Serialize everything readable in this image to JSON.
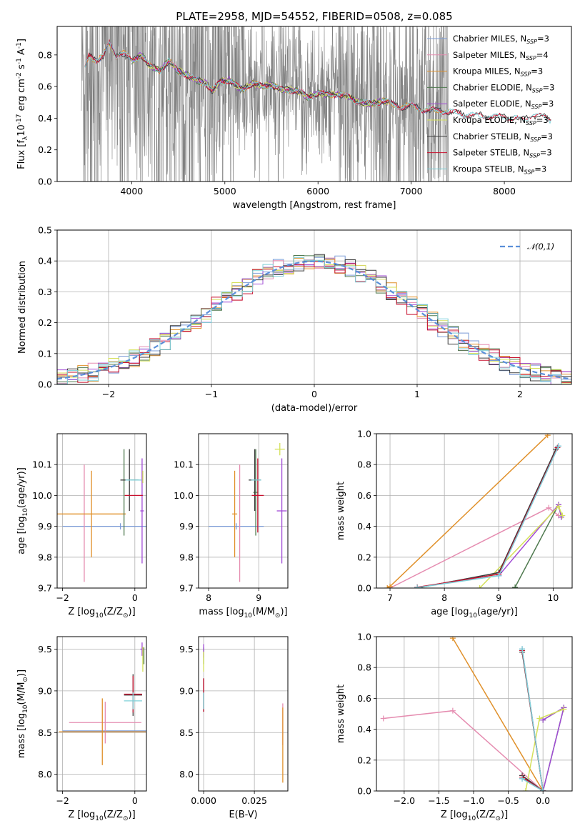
{
  "title": "PLATE=2958, MJD=54552, FIBERID=0508, z=0.085",
  "colors": {
    "Chabrier MILES": "#7b9bd6",
    "Salpeter MILES": "#e58cb0",
    "Kroupa MILES": "#e0902a",
    "Chabrier ELODIE": "#4f7a4f",
    "Salpeter ELODIE": "#a14bd6",
    "Kroupa ELODIE": "#d4e05a",
    "Chabrier STELIB": "#3c3c3c",
    "Salpeter STELIB": "#c8102e",
    "Kroupa STELIB": "#7fd0d8",
    "data": "#808080",
    "gaussian": "#5b8fd9"
  },
  "chart_data": [
    {
      "id": "spectrum",
      "type": "line",
      "xlabel": "wavelength [Angstrom, rest frame]",
      "ylabel": "Flux [f$_\\lambda$10$^{-17}$ erg cm$^{-2}$ s$^{-1}$ A$^{-1}$]",
      "xlim": [
        3200,
        8720
      ],
      "ylim": [
        0,
        0.98
      ],
      "xticks": [
        4000,
        5000,
        6000,
        7000,
        8000
      ],
      "yticks": [
        0.0,
        0.2,
        0.4,
        0.6,
        0.8
      ],
      "grid": false,
      "legend_position": "top-right",
      "data_range": [
        3460,
        7400
      ],
      "model_curve": [
        [
          3460,
          0.64
        ],
        [
          3540,
          0.79
        ],
        [
          3620,
          0.77
        ],
        [
          3700,
          0.8
        ],
        [
          3760,
          0.87
        ],
        [
          3830,
          0.79
        ],
        [
          3880,
          0.82
        ],
        [
          3940,
          0.8
        ],
        [
          4000,
          0.76
        ],
        [
          4100,
          0.8
        ],
        [
          4200,
          0.73
        ],
        [
          4300,
          0.7
        ],
        [
          4400,
          0.76
        ],
        [
          4500,
          0.7
        ],
        [
          4600,
          0.67
        ],
        [
          4700,
          0.64
        ],
        [
          4800,
          0.62
        ],
        [
          4861,
          0.57
        ],
        [
          4950,
          0.63
        ],
        [
          5050,
          0.64
        ],
        [
          5175,
          0.58
        ],
        [
          5300,
          0.62
        ],
        [
          5400,
          0.6
        ],
        [
          5500,
          0.61
        ],
        [
          5600,
          0.58
        ],
        [
          5700,
          0.58
        ],
        [
          5800,
          0.57
        ],
        [
          5893,
          0.53
        ],
        [
          6000,
          0.56
        ],
        [
          6100,
          0.55
        ],
        [
          6200,
          0.55
        ],
        [
          6300,
          0.54
        ],
        [
          6400,
          0.51
        ],
        [
          6563,
          0.49
        ],
        [
          6700,
          0.51
        ],
        [
          6800,
          0.49
        ],
        [
          6900,
          0.47
        ],
        [
          7000,
          0.48
        ],
        [
          7100,
          0.46
        ],
        [
          7200,
          0.45
        ],
        [
          7300,
          0.45
        ],
        [
          7400,
          0.44
        ],
        [
          7500,
          0.43
        ],
        [
          7600,
          0.42
        ],
        [
          7700,
          0.42
        ],
        [
          7800,
          0.41
        ],
        [
          7900,
          0.41
        ],
        [
          8000,
          0.41
        ],
        [
          8100,
          0.4
        ],
        [
          8200,
          0.39
        ],
        [
          8300,
          0.42
        ],
        [
          8400,
          0.41
        ],
        [
          8500,
          0.39
        ]
      ],
      "legend": [
        {
          "label": "Chabrier MILES, N",
          "sub": "SSP",
          "eq": "=3"
        },
        {
          "label": "Salpeter MILES, N",
          "sub": "SSP",
          "eq": "=4"
        },
        {
          "label": "Kroupa MILES, N",
          "sub": "SSP",
          "eq": "=3"
        },
        {
          "label": "Chabrier ELODIE, N",
          "sub": "SSP",
          "eq": "=3"
        },
        {
          "label": "Salpeter ELODIE, N",
          "sub": "SSP",
          "eq": "=3"
        },
        {
          "label": "Kroupa ELODIE, N",
          "sub": "SSP",
          "eq": "=3"
        },
        {
          "label": "Chabrier STELIB, N",
          "sub": "SSP",
          "eq": "=3"
        },
        {
          "label": "Salpeter STELIB, N",
          "sub": "SSP",
          "eq": "=3"
        },
        {
          "label": "Kroupa STELIB, N",
          "sub": "SSP",
          "eq": "=3"
        }
      ]
    },
    {
      "id": "residuals",
      "type": "line",
      "xlabel": "(data-model)/error",
      "ylabel": "Normed distribution",
      "xlim": [
        -2.5,
        2.5
      ],
      "ylim": [
        0,
        0.5
      ],
      "xticks": [
        -2,
        -1,
        0,
        1,
        2
      ],
      "yticks": [
        0.0,
        0.1,
        0.2,
        0.3,
        0.4,
        0.5
      ],
      "grid": true,
      "legend_label": "$\\mathcal{N}(0,1)$",
      "legend_position": "top-right",
      "bin_width": 0.1
    },
    {
      "id": "age_vs_Z",
      "type": "scatter",
      "xlabel": "Z [log$_{10}$($Z/Z_\\odot$)]",
      "ylabel": "age  [log$_{10}$($age/yr$)]",
      "xlim": [
        -2.15,
        0.32
      ],
      "ylim": [
        9.7,
        10.2
      ],
      "xticks": [
        -2,
        0
      ],
      "yticks": [
        9.7,
        9.8,
        9.9,
        10.0,
        10.1
      ],
      "grid": true,
      "points": [
        {
          "m": "Chabrier MILES",
          "x": -0.4,
          "xe": 1.6,
          "y": 9.9,
          "ye": 0.01
        },
        {
          "m": "Salpeter MILES",
          "x": -1.4,
          "xe": 0.0,
          "y": 9.91,
          "ye": 0.19
        },
        {
          "m": "Kroupa MILES",
          "x": -1.2,
          "xe": 0.95,
          "y": 9.94,
          "ye": 0.14
        },
        {
          "m": "Chabrier ELODIE",
          "x": -0.3,
          "xe": 0.0,
          "y": 10.01,
          "ye": 0.14
        },
        {
          "m": "Salpeter ELODIE",
          "x": 0.2,
          "xe": 0.05,
          "y": 9.95,
          "ye": 0.17
        },
        {
          "m": "Kroupa ELODIE",
          "x": 0.22,
          "xe": 0.0,
          "y": 10.06,
          "ye": 0.02
        },
        {
          "m": "Chabrier STELIB",
          "x": -0.15,
          "xe": 0.25,
          "y": 10.05,
          "ye": 0.1
        },
        {
          "m": "Salpeter STELIB",
          "x": -0.03,
          "xe": 0.25,
          "y": 10.0,
          "ye": 0.0
        },
        {
          "m": "Kroupa STELIB",
          "x": -0.04,
          "xe": 0.22,
          "y": 10.05,
          "ye": 0.0
        }
      ]
    },
    {
      "id": "age_vs_mass",
      "type": "scatter",
      "xlabel": "mass [log$_{10}$($M/M_\\odot$)]",
      "ylabel": "",
      "xlim": [
        7.8,
        9.58
      ],
      "ylim": [
        9.7,
        10.2
      ],
      "xticks": [
        8,
        9
      ],
      "yticks": [
        9.7,
        9.8,
        9.9,
        10.0,
        10.1
      ],
      "grid": true,
      "points": [
        {
          "m": "Chabrier MILES",
          "x": 8.55,
          "xe": 0.55,
          "y": 9.9,
          "ye": 0.01
        },
        {
          "m": "Salpeter MILES",
          "x": 8.62,
          "xe": 0.0,
          "y": 9.91,
          "ye": 0.19
        },
        {
          "m": "Kroupa MILES",
          "x": 8.52,
          "xe": 0.05,
          "y": 9.94,
          "ye": 0.14
        },
        {
          "m": "Chabrier ELODIE",
          "x": 8.94,
          "xe": 0.05,
          "y": 10.01,
          "ye": 0.14
        },
        {
          "m": "Salpeter ELODIE",
          "x": 9.46,
          "xe": 0.1,
          "y": 9.95,
          "ye": 0.17
        },
        {
          "m": "Kroupa ELODIE",
          "x": 9.42,
          "xe": 0.1,
          "y": 10.15,
          "ye": 0.02
        },
        {
          "m": "Chabrier STELIB",
          "x": 8.92,
          "xe": 0.12,
          "y": 10.05,
          "ye": 0.1
        },
        {
          "m": "Salpeter STELIB",
          "x": 8.98,
          "xe": 0.12,
          "y": 10.0,
          "ye": 0.12
        },
        {
          "m": "Kroupa STELIB",
          "x": 8.95,
          "xe": 0.1,
          "y": 10.05,
          "ye": 0.0
        }
      ]
    },
    {
      "id": "weight_vs_age",
      "type": "line",
      "xlabel": "age  [log$_{10}$($age/yr$)]",
      "ylabel": "mass weight",
      "xlim": [
        6.75,
        10.35
      ],
      "ylim": [
        0,
        1.0
      ],
      "xticks": [
        7,
        8,
        9,
        10
      ],
      "yticks": [
        0.0,
        0.2,
        0.4,
        0.6,
        0.8,
        1.0
      ],
      "grid": true,
      "series": [
        {
          "m": "Chabrier MILES",
          "points": [
            [
              7.5,
              0.005
            ],
            [
              9.0,
              0.08
            ],
            [
              10.1,
              0.92
            ]
          ]
        },
        {
          "m": "Salpeter MILES",
          "points": [
            [
              7.0,
              0.0
            ],
            [
              9.92,
              0.52
            ],
            [
              10.1,
              0.47
            ]
          ]
        },
        {
          "m": "Kroupa MILES",
          "points": [
            [
              6.95,
              0.0
            ],
            [
              7.0,
              0.01
            ],
            [
              9.9,
              0.99
            ]
          ]
        },
        {
          "m": "Chabrier ELODIE",
          "points": [
            [
              9.3,
              0.005
            ],
            [
              10.1,
              0.54
            ],
            [
              10.15,
              0.46
            ]
          ]
        },
        {
          "m": "Salpeter ELODIE",
          "points": [
            [
              9.0,
              0.08
            ],
            [
              10.1,
              0.54
            ],
            [
              10.15,
              0.46
            ]
          ]
        },
        {
          "m": "Kroupa ELODIE",
          "points": [
            [
              8.65,
              0.0
            ],
            [
              10.1,
              0.53
            ],
            [
              10.17,
              0.47
            ]
          ]
        },
        {
          "m": "Chabrier STELIB",
          "points": [
            [
              7.5,
              0.0
            ],
            [
              9.0,
              0.1
            ],
            [
              10.05,
              0.9
            ]
          ]
        },
        {
          "m": "Salpeter STELIB",
          "points": [
            [
              7.5,
              0.005
            ],
            [
              9.0,
              0.09
            ],
            [
              10.08,
              0.91
            ]
          ]
        },
        {
          "m": "Kroupa STELIB",
          "points": [
            [
              7.5,
              0.003
            ],
            [
              9.0,
              0.08
            ],
            [
              10.1,
              0.92
            ]
          ]
        }
      ]
    },
    {
      "id": "mass_vs_Z",
      "type": "scatter",
      "xlabel": "Z [log$_{10}$($Z/Z_\\odot$)]",
      "ylabel": "mass [log$_{10}$($M/M_\\odot$)]",
      "xlim": [
        -2.15,
        0.32
      ],
      "ylim": [
        7.8,
        9.65
      ],
      "xticks": [
        -2,
        0
      ],
      "yticks": [
        8.0,
        8.5,
        9.0,
        9.5
      ],
      "grid": true,
      "points": [
        {
          "m": "Chabrier MILES",
          "x": -0.4,
          "xe": 1.6,
          "y": 8.52,
          "ye": 0.0
        },
        {
          "m": "Salpeter MILES",
          "x": -0.82,
          "xe": 1.0,
          "y": 8.62,
          "ye": 0.25
        },
        {
          "m": "Kroupa MILES",
          "x": -0.9,
          "xe": 1.2,
          "y": 8.51,
          "ye": 0.4
        },
        {
          "m": "Chabrier ELODIE",
          "x": 0.25,
          "xe": 0.0,
          "y": 9.42,
          "ye": 0.1
        },
        {
          "m": "Salpeter ELODIE",
          "x": 0.2,
          "xe": 0.05,
          "y": 9.5,
          "ye": 0.08
        },
        {
          "m": "Kroupa ELODIE",
          "x": 0.22,
          "xe": 0.0,
          "y": 9.38,
          "ye": 0.15
        },
        {
          "m": "Chabrier STELIB",
          "x": -0.05,
          "xe": 0.25,
          "y": 8.95,
          "ye": 0.25
        },
        {
          "m": "Salpeter STELIB",
          "x": -0.05,
          "xe": 0.25,
          "y": 8.96,
          "ye": 0.22
        },
        {
          "m": "Kroupa STELIB",
          "x": -0.05,
          "xe": 0.25,
          "y": 8.88,
          "ye": 0.1
        }
      ]
    },
    {
      "id": "mass_vs_ebv",
      "type": "scatter",
      "xlabel": "E(B-V)",
      "ylabel": "",
      "xlim": [
        -0.0025,
        0.0415
      ],
      "ylim": [
        7.8,
        9.65
      ],
      "xticks": [
        0.0,
        0.025
      ],
      "tick_labels": [
        "0.000",
        "0.025"
      ],
      "yticks": [
        8.0,
        8.5,
        9.0,
        9.5
      ],
      "grid": true,
      "points": [
        {
          "m": "Chabrier MILES",
          "x": 0.0,
          "xe": 0.0,
          "y": 8.52,
          "ye": 0.0
        },
        {
          "m": "Salpeter MILES",
          "x": 0.039,
          "xe": 0.0,
          "y": 8.6,
          "ye": 0.25
        },
        {
          "m": "Kroupa MILES",
          "x": 0.039,
          "xe": 0.0,
          "y": 8.35,
          "ye": 0.45
        },
        {
          "m": "Chabrier ELODIE",
          "x": 0.0,
          "xe": 0.0,
          "y": 9.42,
          "ye": 0.1
        },
        {
          "m": "Salpeter ELODIE",
          "x": 0.0,
          "xe": 0.0,
          "y": 9.48,
          "ye": 0.08
        },
        {
          "m": "Kroupa ELODIE",
          "x": 0.0,
          "xe": 0.0,
          "y": 9.35,
          "ye": 0.12
        },
        {
          "m": "Chabrier STELIB",
          "x": 0.0,
          "xe": 0.0,
          "y": 8.95,
          "ye": 0.2
        },
        {
          "m": "Salpeter STELIB",
          "x": 0.0,
          "xe": 0.0,
          "y": 8.95,
          "ye": 0.2
        },
        {
          "m": "Kroupa STELIB",
          "x": 0.0,
          "xe": 0.0,
          "y": 8.88,
          "ye": 0.1
        }
      ]
    },
    {
      "id": "weight_vs_Z",
      "type": "line",
      "xlabel": "Z [log$_{10}$($Z/Z_\\odot$)]",
      "ylabel": "mass weight",
      "xlim": [
        -2.4,
        0.42
      ],
      "ylim": [
        0,
        1.0
      ],
      "xticks": [
        -2.0,
        -1.5,
        -1.0,
        -0.5,
        0.0
      ],
      "tick_labels": [
        "−2.0",
        "−1.5",
        "−1.0",
        "−0.5",
        "0.0"
      ],
      "yticks": [
        0.0,
        0.2,
        0.4,
        0.6,
        0.8,
        1.0
      ],
      "grid": true,
      "series": [
        {
          "m": "Chabrier MILES",
          "points": [
            [
              -0.3,
              0.08
            ],
            [
              0.0,
              0.0
            ],
            [
              -0.3,
              0.92
            ]
          ]
        },
        {
          "m": "Salpeter MILES",
          "points": [
            [
              -2.3,
              0.47
            ],
            [
              -1.3,
              0.52
            ],
            [
              0.0,
              0.0
            ]
          ]
        },
        {
          "m": "Kroupa MILES",
          "points": [
            [
              -1.3,
              0.99
            ],
            [
              0.0,
              0.0
            ]
          ]
        },
        {
          "m": "Chabrier ELODIE",
          "points": [
            [
              0.0,
              0.46
            ],
            [
              0.3,
              0.54
            ],
            [
              0.0,
              0.0
            ]
          ]
        },
        {
          "m": "Salpeter ELODIE",
          "points": [
            [
              0.0,
              0.46
            ],
            [
              0.3,
              0.54
            ],
            [
              0.0,
              0.0
            ]
          ]
        },
        {
          "m": "Kroupa ELODIE",
          "points": [
            [
              -0.25,
              0.0
            ],
            [
              -0.05,
              0.47
            ],
            [
              0.3,
              0.53
            ]
          ]
        },
        {
          "m": "Chabrier STELIB",
          "points": [
            [
              -0.3,
              0.1
            ],
            [
              0.0,
              0.0
            ],
            [
              -0.3,
              0.9
            ]
          ]
        },
        {
          "m": "Salpeter STELIB",
          "points": [
            [
              -0.3,
              0.09
            ],
            [
              0.0,
              0.0
            ],
            [
              -0.3,
              0.91
            ]
          ]
        },
        {
          "m": "Kroupa STELIB",
          "points": [
            [
              -0.3,
              0.08
            ],
            [
              0.0,
              0.0
            ],
            [
              -0.3,
              0.92
            ]
          ]
        }
      ]
    }
  ]
}
